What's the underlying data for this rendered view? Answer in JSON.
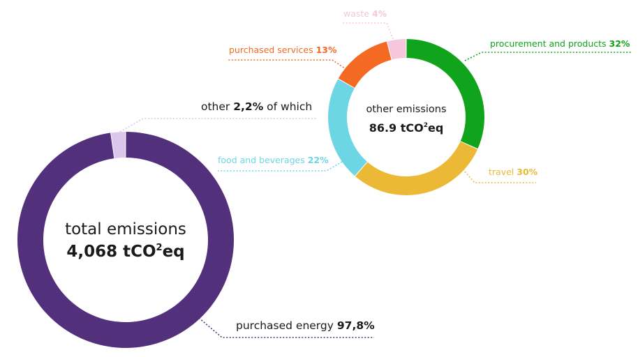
{
  "chart_data": [
    {
      "type": "pie",
      "center_text": {
        "line1": "total emissions",
        "value": "4,068 tCO",
        "superscript": "2",
        "unit_suffix": "eq"
      },
      "categories": [
        "purchased energy",
        "other"
      ],
      "values": [
        97.8,
        2.2
      ],
      "colors": [
        "#53307b",
        "#d9c8ec"
      ],
      "labels": [
        {
          "name": "purchased energy",
          "pct": "97,8%"
        },
        {
          "name": "other",
          "pct": "2,2%",
          "suffix": "of which"
        }
      ]
    },
    {
      "type": "pie",
      "center_text": {
        "line1": "other emissions",
        "value": "86.9 tCO",
        "superscript": "2",
        "unit_suffix": "eq"
      },
      "categories": [
        "procurement and products",
        "travel",
        "food and beverages",
        "purchased services",
        "waste"
      ],
      "values": [
        32,
        30,
        22,
        13,
        4
      ],
      "colors": [
        "#10a31c",
        "#ecb936",
        "#6dd6e4",
        "#f46a23",
        "#f6c7dc"
      ],
      "labels": [
        {
          "name": "procurement and products",
          "pct": "32%"
        },
        {
          "name": "travel",
          "pct": "30%"
        },
        {
          "name": "food and beverages",
          "pct": "22%"
        },
        {
          "name": "purchased services",
          "pct": "13%"
        },
        {
          "name": "waste",
          "pct": "4%"
        }
      ]
    }
  ]
}
